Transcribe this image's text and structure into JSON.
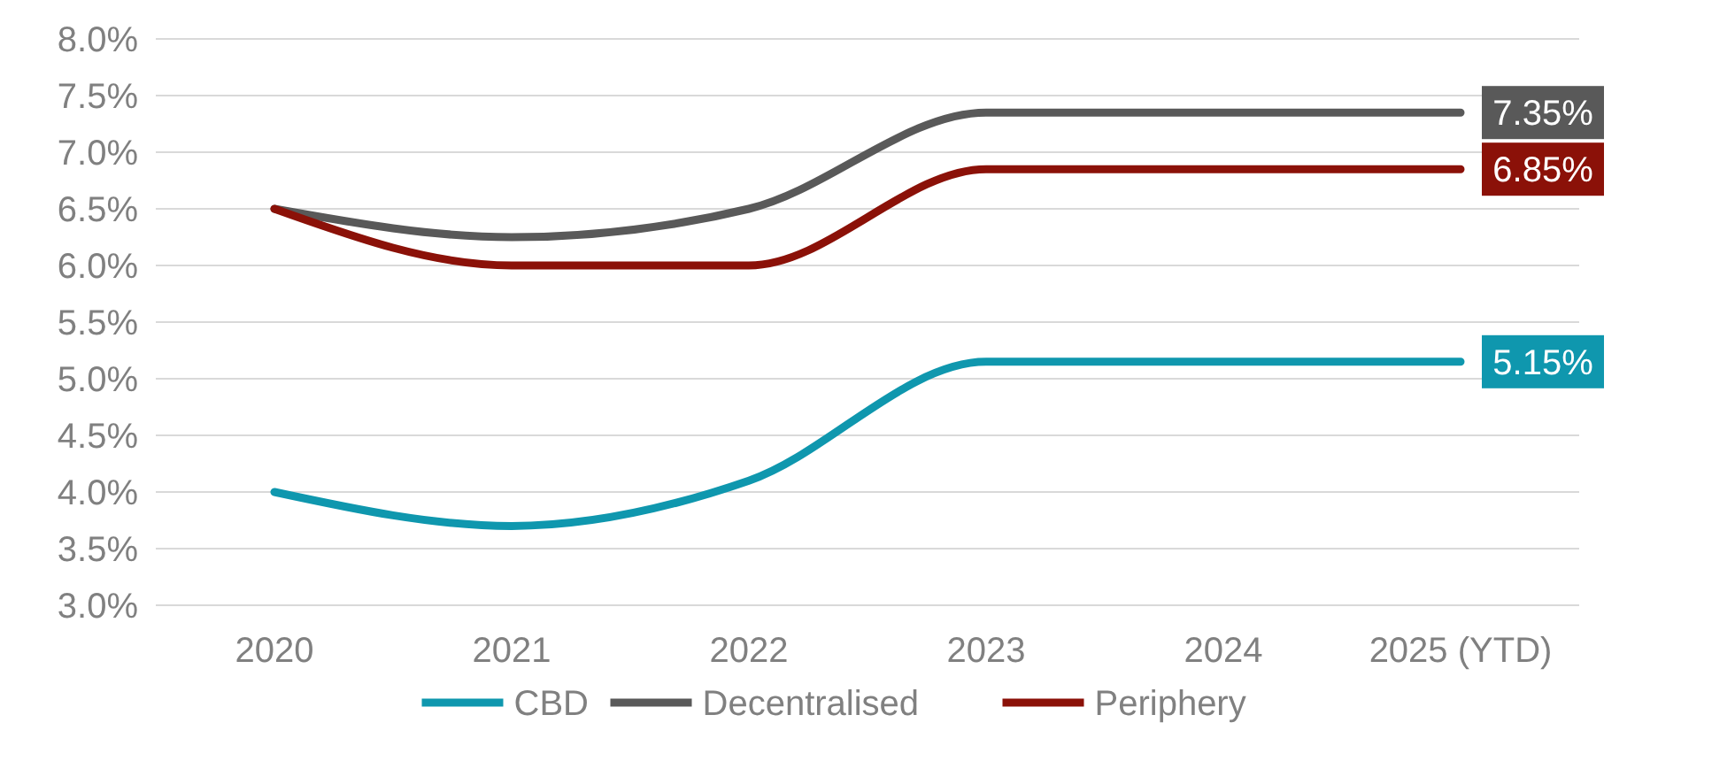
{
  "chart_data": {
    "type": "line",
    "categories": [
      "2020",
      "2021",
      "2022",
      "2023",
      "2024",
      "2025 (YTD)"
    ],
    "series": [
      {
        "name": "CBD",
        "color": "#0f97ae",
        "values": [
          4.0,
          3.7,
          4.1,
          5.15,
          5.15,
          5.15
        ],
        "value_labels": [
          null,
          null,
          null,
          null,
          null,
          "5.15%"
        ]
      },
      {
        "name": "Decentralised",
        "color": "#595959",
        "values": [
          6.5,
          6.25,
          6.5,
          7.35,
          7.35,
          7.35
        ],
        "value_labels": [
          null,
          null,
          null,
          null,
          null,
          "7.35%"
        ]
      },
      {
        "name": "Periphery",
        "color": "#8b1108",
        "values": [
          6.5,
          6.0,
          6.0,
          6.85,
          6.85,
          6.85
        ],
        "value_labels": [
          null,
          null,
          null,
          null,
          null,
          "6.85%"
        ]
      }
    ],
    "ylim": [
      3,
      8
    ],
    "yticks": [
      {
        "value": 3,
        "label": "3.0%"
      },
      {
        "value": 3.5,
        "label": "3.5%"
      },
      {
        "value": 4,
        "label": "4.0%"
      },
      {
        "value": 4.5,
        "label": "4.5%"
      },
      {
        "value": 5,
        "label": "5.0%"
      },
      {
        "value": 5.5,
        "label": "5.5%"
      },
      {
        "value": 6,
        "label": "6.0%"
      },
      {
        "value": 6.5,
        "label": "6.5%"
      },
      {
        "value": 7,
        "label": "7.0%"
      },
      {
        "value": 7.5,
        "label": "7.5%"
      },
      {
        "value": 8,
        "label": "8.0%"
      }
    ],
    "grid": "y",
    "legend": "bottom",
    "marker": "none",
    "line_style": "solid"
  }
}
